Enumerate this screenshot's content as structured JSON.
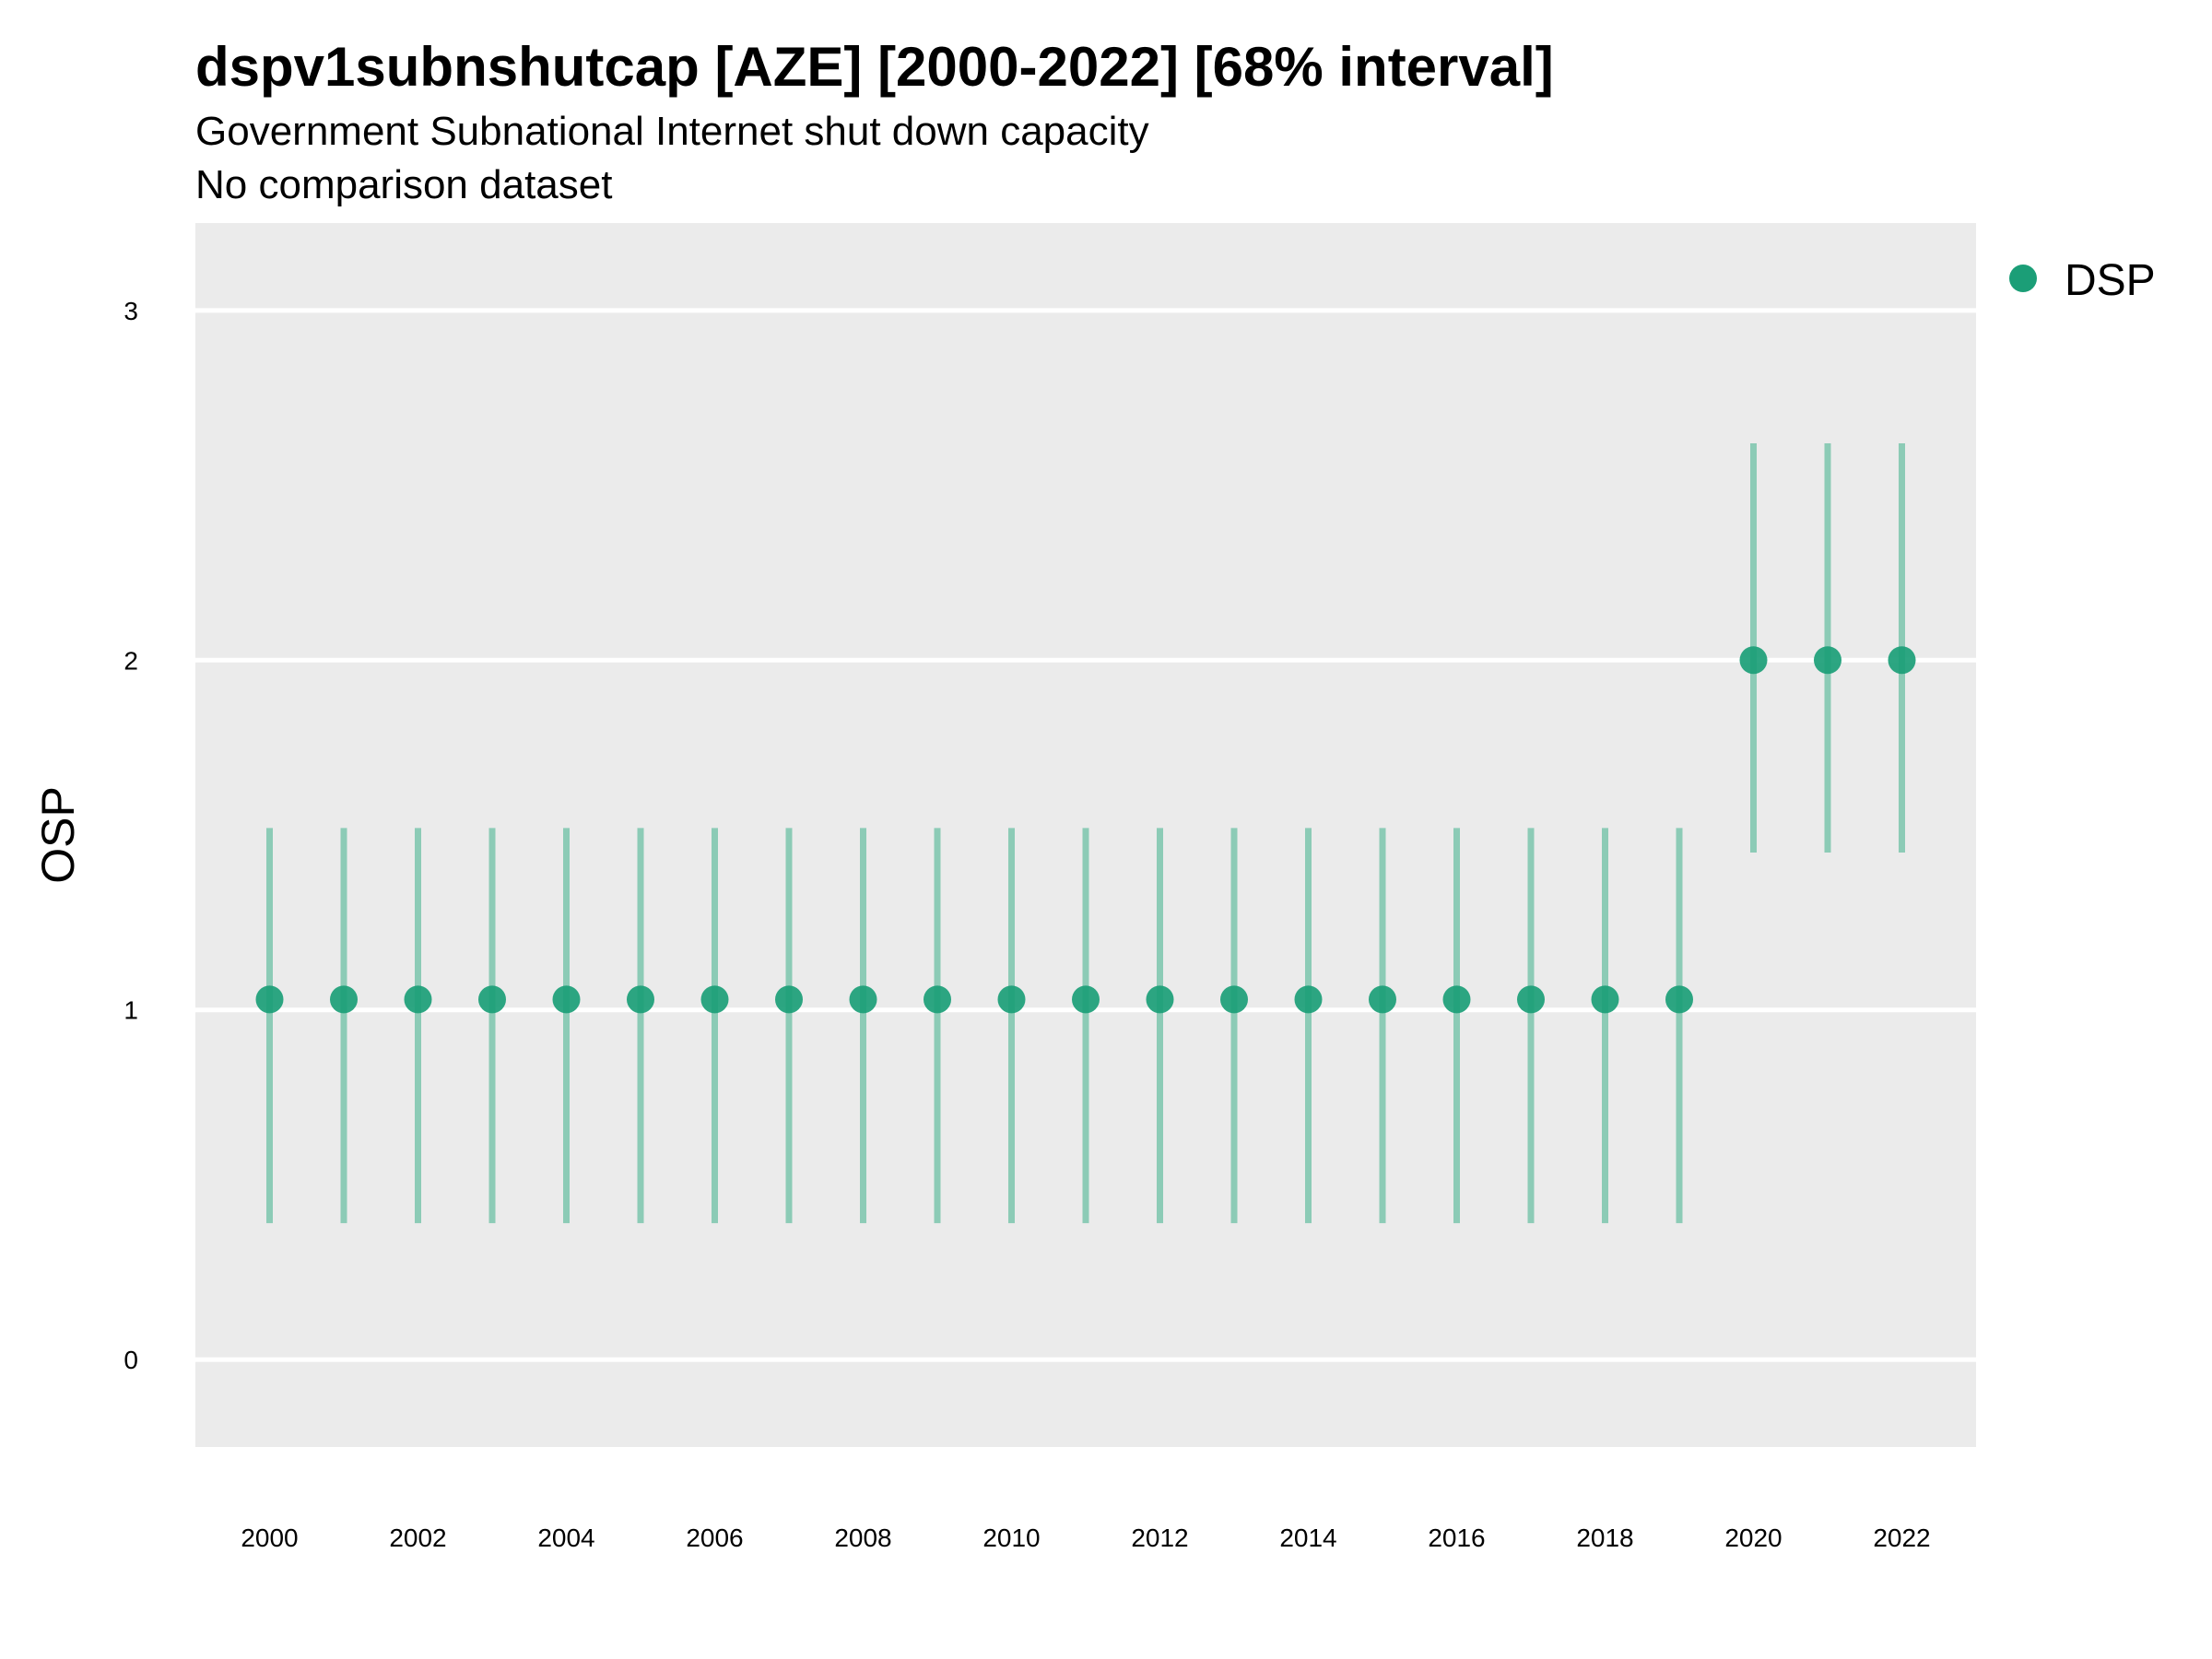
{
  "chart_data": {
    "type": "scatter",
    "title": "dspv1subnshutcap [AZE] [2000-2022] [68% interval]",
    "subtitle": "Government Subnational Internet shut down capacity",
    "subtitle2": "No comparison dataset",
    "xlabel": "",
    "ylabel": "OSP",
    "xlim": [
      1999,
      2023
    ],
    "ylim": [
      -0.25,
      3.25
    ],
    "x_ticks": [
      "2000",
      "2002",
      "2004",
      "2006",
      "2008",
      "2010",
      "2012",
      "2014",
      "2016",
      "2018",
      "2020",
      "2022"
    ],
    "y_ticks": [
      "0",
      "1",
      "2",
      "3"
    ],
    "grid": true,
    "legend": {
      "position": "right",
      "entries": [
        "DSP"
      ]
    },
    "colors": {
      "point": "#1b9e77",
      "interval": "#8ccbb6",
      "panel": "#ebebeb",
      "grid": "#ffffff"
    },
    "series": [
      {
        "name": "DSP",
        "x": [
          2000,
          2001,
          2002,
          2003,
          2004,
          2005,
          2006,
          2007,
          2008,
          2009,
          2010,
          2011,
          2012,
          2013,
          2014,
          2015,
          2016,
          2017,
          2018,
          2019,
          2020,
          2021,
          2022
        ],
        "y": [
          1.03,
          1.03,
          1.03,
          1.03,
          1.03,
          1.03,
          1.03,
          1.03,
          1.03,
          1.03,
          1.03,
          1.03,
          1.03,
          1.03,
          1.03,
          1.03,
          1.03,
          1.03,
          1.03,
          1.03,
          2.0,
          2.0,
          2.0
        ],
        "lower": [
          0.39,
          0.39,
          0.39,
          0.39,
          0.39,
          0.39,
          0.39,
          0.39,
          0.39,
          0.39,
          0.39,
          0.39,
          0.39,
          0.39,
          0.39,
          0.39,
          0.39,
          0.39,
          0.39,
          0.39,
          1.45,
          1.45,
          1.45
        ],
        "upper": [
          1.52,
          1.52,
          1.52,
          1.52,
          1.52,
          1.52,
          1.52,
          1.52,
          1.52,
          1.52,
          1.52,
          1.52,
          1.52,
          1.52,
          1.52,
          1.52,
          1.52,
          1.52,
          1.52,
          1.52,
          2.62,
          2.62,
          2.62
        ]
      }
    ]
  }
}
